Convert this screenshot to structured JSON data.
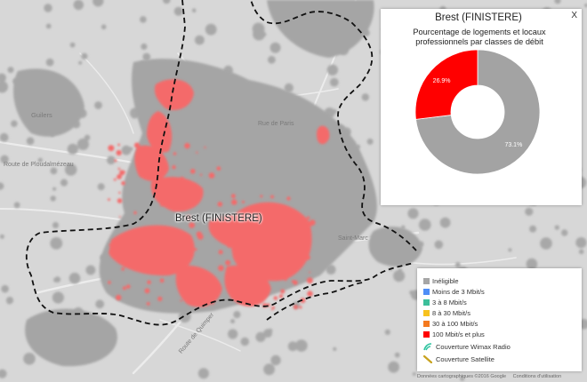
{
  "map": {
    "city_label": "Brest (FINISTERE)",
    "place_labels": [
      {
        "id": "label-guilers",
        "text": "Guilers"
      },
      {
        "id": "label-road-1",
        "text": "Route de Ploudalmézeau"
      },
      {
        "id": "label-road-2",
        "text": "Rue de Paris"
      },
      {
        "id": "label-saint-marc",
        "text": "Saint-Marc"
      },
      {
        "id": "label-road-3",
        "text": "Route de Quimper"
      }
    ]
  },
  "popup": {
    "title": "Brest (FINISTERE)",
    "subtitle": "Pourcentage de logements et locaux professionnels par classes de débit",
    "close_label": "X"
  },
  "chart_data": {
    "type": "pie",
    "title": "Brest (FINISTERE)",
    "subtitle": "Pourcentage de logements et locaux professionnels par classes de débit",
    "slices": [
      {
        "label": "Inéligible",
        "value": 73.1,
        "value_label": "73.1%",
        "color": "#a3a3a3"
      },
      {
        "label": "100 Mbit/s et plus",
        "value": 26.9,
        "value_label": "26.9%",
        "color": "#ff0000"
      }
    ],
    "donut": true
  },
  "legend": {
    "items": [
      {
        "label": "Inéligible",
        "color": "#a6a6a6"
      },
      {
        "label": "Moins de 3 Mbit/s",
        "color": "#4f8ef7"
      },
      {
        "label": "3 à 8 Mbit/s",
        "color": "#3cbf9a"
      },
      {
        "label": "8 à 30 Mbit/s",
        "color": "#f7c21e"
      },
      {
        "label": "30 à 100 Mbit/s",
        "color": "#f47a20"
      },
      {
        "label": "100 Mbit/s et plus",
        "color": "#ff0000"
      }
    ],
    "wimax": {
      "label": "Couverture Wimax Radio",
      "icon": "wimax-radio-icon",
      "color": "#2ec4a0"
    },
    "satellite": {
      "label": "Couverture Satellite",
      "icon": "satellite-icon",
      "color": "#c8a21e"
    }
  },
  "attribution": {
    "data": "Données cartographiques ©2016 Google",
    "terms": "Conditions d'utilisation"
  },
  "colors": {
    "map_background": "#d7d7d7",
    "urban_area": "#a8a8a8",
    "fiber_coverage": "#f46a6a",
    "boundary": "#111111"
  }
}
